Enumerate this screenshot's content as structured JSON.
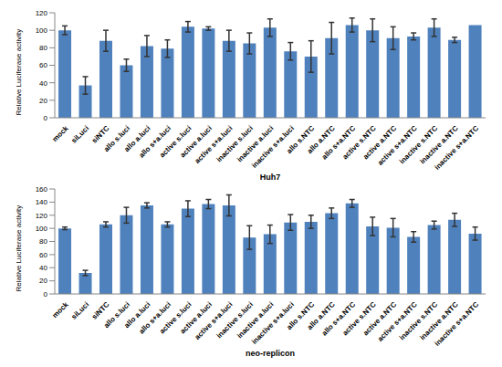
{
  "chart_data": [
    {
      "type": "bar",
      "x_label": "Huh7",
      "y_label": "Relative Luciferase activity",
      "categories": [
        "mock",
        "siLuci",
        "siNTC",
        "allo s.luci",
        "allo a.luci",
        "allo s+a.luci",
        "active s.luci",
        "active a.luci",
        "active s+a.luci",
        "inactive s.luci",
        "inactive a.luci",
        "inactive s+a.luci",
        "allo s.NTC",
        "allo a.NTC",
        "allo s+a.NTC",
        "active s.NTC",
        "active a.NTC",
        "active s+a.NTC",
        "inactive s.NTC",
        "inactive a.NTC",
        "inactive s+a.NTC"
      ],
      "values": [
        100,
        37,
        88,
        60,
        82,
        79,
        104,
        102,
        88,
        85,
        103,
        76,
        70,
        91,
        106,
        100,
        91,
        93,
        103,
        89,
        106
      ],
      "errors": [
        5,
        10,
        12,
        7,
        12,
        10,
        6,
        2,
        12,
        12,
        10,
        10,
        18,
        18,
        8,
        13,
        13,
        4,
        10,
        3,
        0
      ],
      "color": "#4f81bd",
      "ylim": [
        0,
        120
      ],
      "yticks": [
        0,
        20,
        40,
        60,
        80,
        100,
        120
      ],
      "grid": false
    },
    {
      "type": "bar",
      "x_label": "neo-replicon",
      "y_label": "Relative Luciferase activity",
      "categories": [
        "mock",
        "siLuci",
        "siNTC",
        "allo s.luci",
        "allo a.luci",
        "allo s+a.luci",
        "active s.luci",
        "active a.luci",
        "active s+a.luci",
        "inactive s.luci",
        "inactive a.luci",
        "inactive s+a.luci",
        "allo s.NTC",
        "allo a.NTC",
        "allo s+a.NTC",
        "active s.NTC",
        "active a.NTC",
        "active s+a.NTC",
        "inactive s.NTC",
        "inactive a.NTC",
        "inactive s+a.NTC"
      ],
      "values": [
        100,
        32,
        106,
        120,
        135,
        106,
        130,
        137,
        135,
        86,
        91,
        109,
        110,
        123,
        138,
        103,
        101,
        87,
        105,
        113,
        92
      ],
      "errors": [
        2,
        4,
        4,
        12,
        4,
        4,
        12,
        7,
        16,
        18,
        14,
        12,
        10,
        8,
        6,
        14,
        14,
        8,
        6,
        10,
        10
      ],
      "color": "#4f81bd",
      "ylim": [
        0,
        160
      ],
      "yticks": [
        0,
        20,
        40,
        60,
        80,
        100,
        120,
        140,
        160
      ],
      "grid": false
    }
  ]
}
